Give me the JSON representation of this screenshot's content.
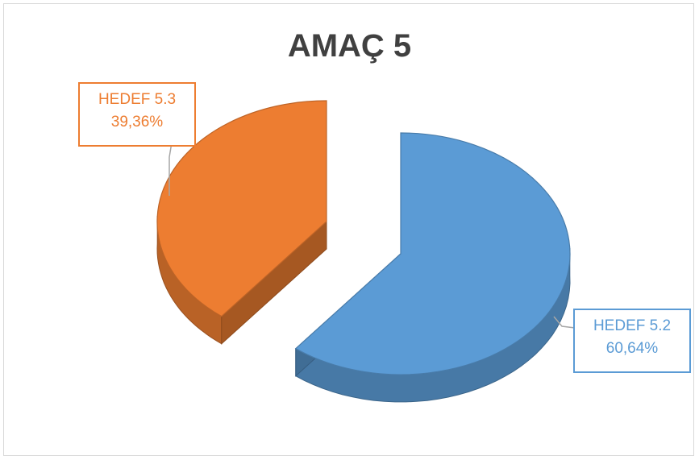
{
  "chart_data": {
    "type": "pie",
    "title": "AMAÇ 5",
    "slices": [
      {
        "name": "HEDEF 5.2",
        "value": 60.64,
        "value_label": "60,64%",
        "color": "#5b9bd5"
      },
      {
        "name": "HEDEF 5.3",
        "value": 39.36,
        "value_label": "39,36%",
        "color": "#ed7d31"
      }
    ],
    "data_labels": "category; percentage",
    "legend": "none",
    "style": "3d-exploded"
  }
}
